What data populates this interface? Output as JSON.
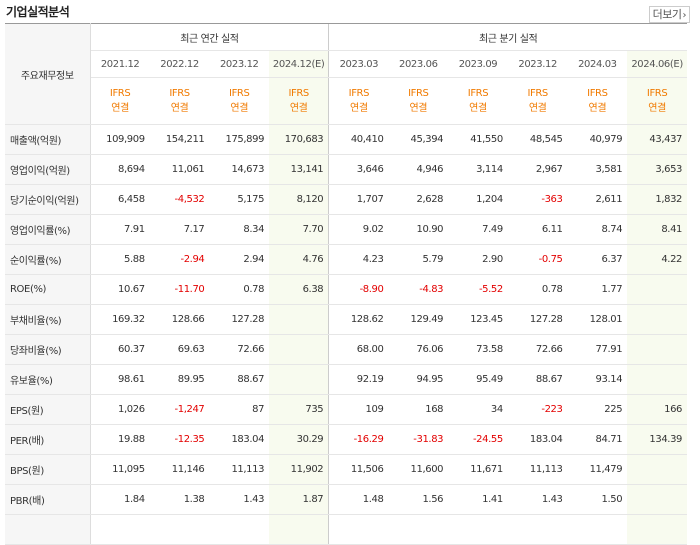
{
  "header": {
    "title": "기업실적분석",
    "more_label": "더보기",
    "more_icon": "chevron-right-icon"
  },
  "table": {
    "row_header_label": "주요재무정보",
    "group_annual": "최근 연간 실적",
    "group_quarter": "최근 분기 실적",
    "periods": [
      "2021.12",
      "2022.12",
      "2023.12",
      "2024.12(E)",
      "2023.03",
      "2023.06",
      "2023.09",
      "2023.12",
      "2024.03",
      "2024.06(E)"
    ],
    "basis": [
      "IFRS",
      "IFRS",
      "IFRS",
      "IFRS",
      "IFRS",
      "IFRS",
      "IFRS",
      "IFRS",
      "IFRS",
      "IFRS"
    ],
    "scope": [
      "연결",
      "연결",
      "연결",
      "연결",
      "연결",
      "연결",
      "연결",
      "연결",
      "연결",
      "연결"
    ],
    "rows": [
      {
        "label": "매출액(억원)",
        "values": [
          "109,909",
          "154,211",
          "175,899",
          "170,683",
          "40,410",
          "45,394",
          "41,550",
          "48,545",
          "40,979",
          "43,437"
        ]
      },
      {
        "label": "영업이익(억원)",
        "values": [
          "8,694",
          "11,061",
          "14,673",
          "13,141",
          "3,646",
          "4,946",
          "3,114",
          "2,967",
          "3,581",
          "3,653"
        ]
      },
      {
        "label": "당기순이익(억원)",
        "values": [
          "6,458",
          "-4,532",
          "5,175",
          "8,120",
          "1,707",
          "2,628",
          "1,204",
          "-363",
          "2,611",
          "1,832"
        ]
      },
      {
        "label": "영업이익률(%)",
        "values": [
          "7.91",
          "7.17",
          "8.34",
          "7.70",
          "9.02",
          "10.90",
          "7.49",
          "6.11",
          "8.74",
          "8.41"
        ]
      },
      {
        "label": "순이익률(%)",
        "values": [
          "5.88",
          "-2.94",
          "2.94",
          "4.76",
          "4.23",
          "5.79",
          "2.90",
          "-0.75",
          "6.37",
          "4.22"
        ]
      },
      {
        "label": "ROE(%)",
        "values": [
          "10.67",
          "-11.70",
          "0.78",
          "6.38",
          "-8.90",
          "-4.83",
          "-5.52",
          "0.78",
          "1.77",
          ""
        ]
      },
      {
        "label": "부채비율(%)",
        "values": [
          "169.32",
          "128.66",
          "127.28",
          "",
          "128.62",
          "129.49",
          "123.45",
          "127.28",
          "128.01",
          ""
        ]
      },
      {
        "label": "당좌비율(%)",
        "values": [
          "60.37",
          "69.63",
          "72.66",
          "",
          "68.00",
          "76.06",
          "73.58",
          "72.66",
          "77.91",
          ""
        ]
      },
      {
        "label": "유보율(%)",
        "values": [
          "98.61",
          "89.95",
          "88.67",
          "",
          "92.19",
          "94.95",
          "95.49",
          "88.67",
          "93.14",
          ""
        ]
      },
      {
        "label": "EPS(원)",
        "values": [
          "1,026",
          "-1,247",
          "87",
          "735",
          "109",
          "168",
          "34",
          "-223",
          "225",
          "166"
        ]
      },
      {
        "label": "PER(배)",
        "values": [
          "19.88",
          "-12.35",
          "183.04",
          "30.29",
          "-16.29",
          "-31.83",
          "-24.55",
          "183.04",
          "84.71",
          "134.39"
        ]
      },
      {
        "label": "BPS(원)",
        "values": [
          "11,095",
          "11,146",
          "11,113",
          "11,902",
          "11,506",
          "11,600",
          "11,671",
          "11,113",
          "11,479",
          ""
        ]
      },
      {
        "label": "PBR(배)",
        "values": [
          "1.84",
          "1.38",
          "1.43",
          "1.87",
          "1.48",
          "1.56",
          "1.41",
          "1.43",
          "1.50",
          ""
        ]
      },
      {
        "label": "",
        "values": [
          "",
          "",
          "",
          "",
          "",
          "",
          "",
          "",
          "",
          ""
        ]
      }
    ]
  },
  "colors": {
    "estimate_bg": "#f8fbef",
    "negative": "#e30000",
    "ifrs": "#f07a00"
  }
}
